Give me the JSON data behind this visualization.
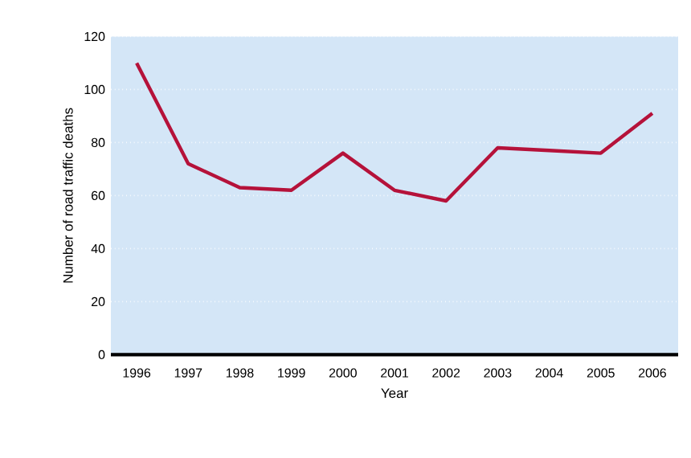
{
  "chart_data": {
    "type": "line",
    "xlabel": "Year",
    "ylabel": "Number of road traffic deaths",
    "categories": [
      "1996",
      "1997",
      "1998",
      "1999",
      "2000",
      "2001",
      "2002",
      "2003",
      "2004",
      "2005",
      "2006"
    ],
    "values": [
      110,
      72,
      63,
      62,
      76,
      62,
      58,
      78,
      77,
      76,
      91
    ],
    "color": "#b5123a",
    "ylim": [
      0,
      120
    ],
    "yticks": [
      0,
      20,
      40,
      60,
      80,
      100,
      120
    ],
    "grid": "y",
    "marker": "none",
    "line_style": "solid"
  }
}
